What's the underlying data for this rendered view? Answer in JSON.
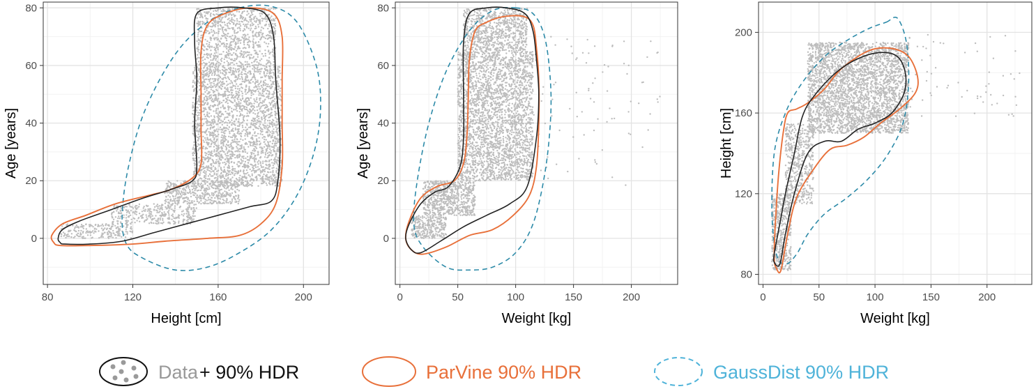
{
  "colors": {
    "points": "#bdbdbd",
    "data_hdr": "#222222",
    "parvine": "#e8703a",
    "gaussdist": "#2c8aa8",
    "gaussdist_legend": "#4fb3d9",
    "grid_major": "#e3e3e3",
    "grid_minor": "#f2f2f2",
    "panel_border": "#333333"
  },
  "legend": {
    "placement": "bottom",
    "data_word": "Data",
    "data_suffix": "+ 90% HDR",
    "parvine": "ParVine 90% HDR",
    "gaussdist": "GaussDist 90% HDR"
  },
  "chart_data": [
    {
      "type": "scatter",
      "xlabel": "Height [cm]",
      "ylabel": "Age [years]",
      "xlim": [
        78,
        212
      ],
      "ylim": [
        -16,
        82
      ],
      "xticks": [
        80,
        120,
        160,
        200
      ],
      "yticks": [
        0,
        20,
        40,
        60,
        80
      ],
      "data_hdr": [
        [
          88,
          -2
        ],
        [
          100,
          -2
        ],
        [
          115,
          -1
        ],
        [
          130,
          2
        ],
        [
          145,
          5
        ],
        [
          160,
          8
        ],
        [
          175,
          11
        ],
        [
          185,
          13
        ],
        [
          188,
          20
        ],
        [
          189,
          35
        ],
        [
          187,
          55
        ],
        [
          186,
          70
        ],
        [
          182,
          78
        ],
        [
          172,
          80
        ],
        [
          160,
          80
        ],
        [
          150,
          78
        ],
        [
          149,
          68
        ],
        [
          150,
          55
        ],
        [
          149,
          40
        ],
        [
          150,
          25
        ],
        [
          148,
          20
        ],
        [
          138,
          17
        ],
        [
          125,
          14
        ],
        [
          110,
          10
        ],
        [
          95,
          6
        ],
        [
          87,
          3
        ],
        [
          85,
          0
        ],
        [
          86,
          -1.5
        ]
      ],
      "parvine": [
        [
          86,
          -2.5
        ],
        [
          100,
          -2.5
        ],
        [
          120,
          -2
        ],
        [
          135,
          -1
        ],
        [
          155,
          0
        ],
        [
          170,
          1
        ],
        [
          180,
          5
        ],
        [
          187,
          12
        ],
        [
          190,
          25
        ],
        [
          190,
          40
        ],
        [
          190,
          55
        ],
        [
          190,
          70
        ],
        [
          186,
          78
        ],
        [
          175,
          80
        ],
        [
          163,
          78
        ],
        [
          155,
          74
        ],
        [
          152,
          65
        ],
        [
          152,
          50
        ],
        [
          152,
          38
        ],
        [
          152,
          26
        ],
        [
          148,
          21
        ],
        [
          138,
          17
        ],
        [
          128,
          15
        ],
        [
          112,
          12
        ],
        [
          98,
          8
        ],
        [
          87,
          5
        ],
        [
          82,
          1
        ],
        [
          83,
          -1.5
        ]
      ],
      "gaussdist": [
        [
          170,
          80
        ],
        [
          185,
          80.5
        ],
        [
          197,
          75
        ],
        [
          206,
          60
        ],
        [
          208,
          45
        ],
        [
          205,
          30
        ],
        [
          197,
          15
        ],
        [
          185,
          3
        ],
        [
          170,
          -5
        ],
        [
          155,
          -10
        ],
        [
          140,
          -11
        ],
        [
          125,
          -7
        ],
        [
          117,
          -2
        ],
        [
          115,
          8
        ],
        [
          118,
          25
        ],
        [
          126,
          45
        ],
        [
          140,
          64
        ],
        [
          155,
          75
        ]
      ],
      "clusters": [
        {
          "x": [
            86,
            120
          ],
          "y": [
            0,
            5
          ],
          "n": 220
        },
        {
          "x": [
            110,
            150
          ],
          "y": [
            5,
            12
          ],
          "n": 350
        },
        {
          "x": [
            135,
            170
          ],
          "y": [
            12,
            20
          ],
          "n": 500
        },
        {
          "x": [
            148,
            190
          ],
          "y": [
            18,
            60
          ],
          "n": 2600
        },
        {
          "x": [
            150,
            187
          ],
          "y": [
            60,
            80
          ],
          "n": 900
        }
      ]
    },
    {
      "type": "scatter",
      "xlabel": "Weight [kg]",
      "ylabel": "Age [years]",
      "xlim": [
        -4,
        240
      ],
      "ylim": [
        -16,
        82
      ],
      "xticks": [
        0,
        50,
        100,
        150,
        200
      ],
      "yticks": [
        0,
        20,
        40,
        60,
        80
      ],
      "data_hdr": [
        [
          18,
          -5
        ],
        [
          35,
          -1
        ],
        [
          55,
          4
        ],
        [
          75,
          8
        ],
        [
          95,
          12
        ],
        [
          110,
          18
        ],
        [
          118,
          35
        ],
        [
          120,
          50
        ],
        [
          118,
          62
        ],
        [
          115,
          72
        ],
        [
          108,
          78
        ],
        [
          92,
          80
        ],
        [
          75,
          80
        ],
        [
          60,
          78
        ],
        [
          55,
          68
        ],
        [
          55,
          50
        ],
        [
          55,
          35
        ],
        [
          52,
          25
        ],
        [
          42,
          18
        ],
        [
          30,
          16
        ],
        [
          18,
          12
        ],
        [
          8,
          5
        ],
        [
          5,
          0
        ],
        [
          10,
          -4
        ]
      ],
      "parvine": [
        [
          20,
          -5.5
        ],
        [
          40,
          -3
        ],
        [
          60,
          1
        ],
        [
          80,
          3
        ],
        [
          98,
          8
        ],
        [
          112,
          15
        ],
        [
          118,
          25
        ],
        [
          120,
          40
        ],
        [
          120,
          55
        ],
        [
          118,
          66
        ],
        [
          115,
          74
        ],
        [
          107,
          77
        ],
        [
          90,
          77
        ],
        [
          75,
          75
        ],
        [
          65,
          72
        ],
        [
          60,
          62
        ],
        [
          59,
          48
        ],
        [
          58,
          36
        ],
        [
          55,
          26
        ],
        [
          47,
          20
        ],
        [
          32,
          18
        ],
        [
          18,
          14
        ],
        [
          8,
          6
        ],
        [
          5,
          0
        ],
        [
          10,
          -4
        ]
      ],
      "gaussdist": [
        [
          100,
          80
        ],
        [
          115,
          78
        ],
        [
          125,
          70
        ],
        [
          130,
          55
        ],
        [
          130,
          40
        ],
        [
          125,
          22
        ],
        [
          115,
          5
        ],
        [
          100,
          -5
        ],
        [
          80,
          -10
        ],
        [
          60,
          -11
        ],
        [
          40,
          -10
        ],
        [
          20,
          -3
        ],
        [
          12,
          5
        ],
        [
          15,
          20
        ],
        [
          25,
          40
        ],
        [
          40,
          58
        ],
        [
          60,
          72
        ],
        [
          80,
          79
        ]
      ],
      "clusters": [
        {
          "x": [
            10,
            40
          ],
          "y": [
            0,
            8
          ],
          "n": 300
        },
        {
          "x": [
            20,
            65
          ],
          "y": [
            8,
            20
          ],
          "n": 700
        },
        {
          "x": [
            50,
            115
          ],
          "y": [
            20,
            65
          ],
          "n": 2800
        },
        {
          "x": [
            55,
            110
          ],
          "y": [
            65,
            80
          ],
          "n": 800
        },
        {
          "x": [
            110,
            225
          ],
          "y": [
            18,
            70
          ],
          "n": 90
        }
      ]
    },
    {
      "type": "scatter",
      "xlabel": "Weight [kg]",
      "ylabel": "Height [cm]",
      "xlim": [
        -4,
        240
      ],
      "ylim": [
        75,
        215
      ],
      "xticks": [
        0,
        50,
        100,
        150,
        200
      ],
      "yticks": [
        80,
        120,
        160,
        200
      ],
      "data_hdr": [
        [
          15,
          85
        ],
        [
          20,
          100
        ],
        [
          28,
          120
        ],
        [
          40,
          140
        ],
        [
          55,
          146
        ],
        [
          70,
          146
        ],
        [
          85,
          152
        ],
        [
          100,
          155
        ],
        [
          115,
          160
        ],
        [
          126,
          170
        ],
        [
          127,
          180
        ],
        [
          120,
          188
        ],
        [
          105,
          190
        ],
        [
          85,
          187
        ],
        [
          65,
          180
        ],
        [
          45,
          168
        ],
        [
          35,
          158
        ],
        [
          28,
          140
        ],
        [
          20,
          120
        ],
        [
          15,
          105
        ],
        [
          10,
          90
        ],
        [
          10,
          86
        ]
      ],
      "parvine": [
        [
          16,
          82
        ],
        [
          22,
          100
        ],
        [
          30,
          118
        ],
        [
          45,
          132
        ],
        [
          60,
          142
        ],
        [
          75,
          144
        ],
        [
          90,
          148
        ],
        [
          105,
          155
        ],
        [
          122,
          162
        ],
        [
          136,
          170
        ],
        [
          138,
          178
        ],
        [
          130,
          188
        ],
        [
          115,
          192
        ],
        [
          95,
          191
        ],
        [
          70,
          182
        ],
        [
          55,
          172
        ],
        [
          40,
          165
        ],
        [
          30,
          162
        ],
        [
          22,
          160
        ],
        [
          18,
          150
        ],
        [
          14,
          130
        ],
        [
          11,
          105
        ],
        [
          10,
          88
        ],
        [
          12,
          83
        ]
      ],
      "gaussdist": [
        [
          110,
          205
        ],
        [
          120,
          207
        ],
        [
          128,
          195
        ],
        [
          130,
          175
        ],
        [
          125,
          155
        ],
        [
          112,
          140
        ],
        [
          95,
          128
        ],
        [
          75,
          118
        ],
        [
          55,
          110
        ],
        [
          40,
          100
        ],
        [
          30,
          90
        ],
        [
          20,
          85
        ],
        [
          12,
          90
        ],
        [
          8,
          110
        ],
        [
          10,
          140
        ],
        [
          20,
          160
        ],
        [
          35,
          175
        ],
        [
          55,
          188
        ],
        [
          75,
          196
        ],
        [
          95,
          202
        ]
      ],
      "clusters": [
        {
          "x": [
            8,
            25
          ],
          "y": [
            82,
            120
          ],
          "n": 500
        },
        {
          "x": [
            20,
            45
          ],
          "y": [
            115,
            155
          ],
          "n": 500
        },
        {
          "x": [
            40,
            130
          ],
          "y": [
            150,
            195
          ],
          "n": 3200
        },
        {
          "x": [
            130,
            230
          ],
          "y": [
            158,
            200
          ],
          "n": 60
        }
      ]
    }
  ]
}
